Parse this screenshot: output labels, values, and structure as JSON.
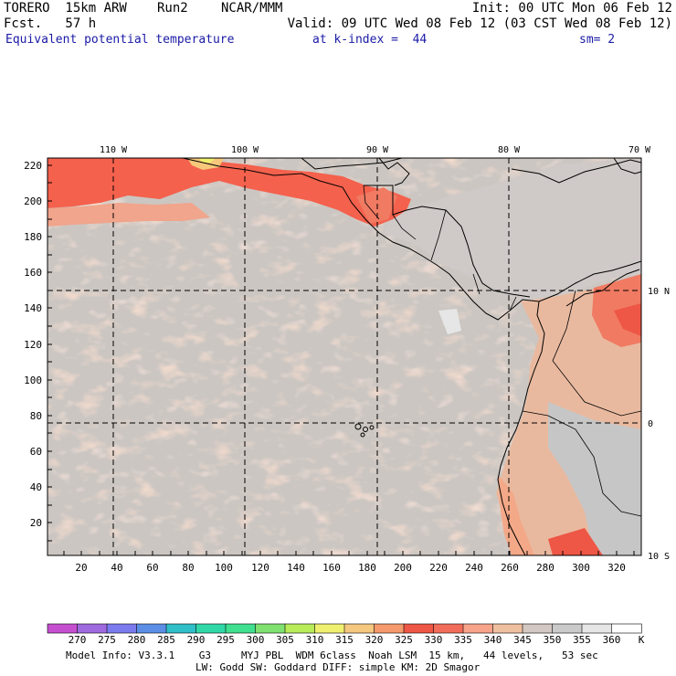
{
  "header": {
    "model": "TORERO  15km ARW",
    "run": "Run2",
    "org": "NCAR/MMM",
    "init": "Init: 00 UTC Mon 06 Feb 12",
    "fcst": "Fcst.   57 h",
    "valid": "Valid: 09 UTC Wed 08 Feb 12 (03 CST Wed 08 Feb 12)"
  },
  "field": {
    "name": "Equivalent potential temperature",
    "level": "at k-index =  44",
    "smooth": "sm= 2"
  },
  "map": {
    "top_lon_labels": [
      "110 W",
      "100 W",
      "90 W",
      "80 W",
      "70 W"
    ],
    "right_lat_labels": [
      "10 N",
      "0",
      "10 S"
    ],
    "y_ticks": [
      "220",
      "200",
      "180",
      "160",
      "140",
      "120",
      "100",
      "80",
      "60",
      "40",
      "20"
    ],
    "x_ticks": [
      "20",
      "40",
      "60",
      "80",
      "100",
      "120",
      "140",
      "160",
      "180",
      "200",
      "220",
      "240",
      "260",
      "280",
      "300",
      "320"
    ]
  },
  "colorbar": {
    "labels": [
      "270",
      "275",
      "280",
      "285",
      "290",
      "295",
      "300",
      "305",
      "310",
      "315",
      "320",
      "325",
      "330",
      "335",
      "340",
      "345",
      "350",
      "355",
      "360"
    ],
    "unit": "K",
    "colors": [
      "#c64fd0",
      "#a06adf",
      "#7b7bef",
      "#5c8ee6",
      "#2fbfc8",
      "#30d8a8",
      "#40e090",
      "#80e070",
      "#b8ec58",
      "#f0f070",
      "#f5c880",
      "#f59a6c",
      "#ee5646",
      "#f26c5a",
      "#f7a48b",
      "#efc0a0",
      "#d3c8c2",
      "#cacaca",
      "#e6e6e6",
      "#ffffff"
    ]
  },
  "footer": {
    "line1": "Model Info: V3.3.1    G3     MYJ PBL  WDM 6class  Noah LSM  15 km,   44 levels,   53 sec",
    "line2": "LW: Godd SW: Goddard DIFF: simple KM: 2D Smagor"
  }
}
